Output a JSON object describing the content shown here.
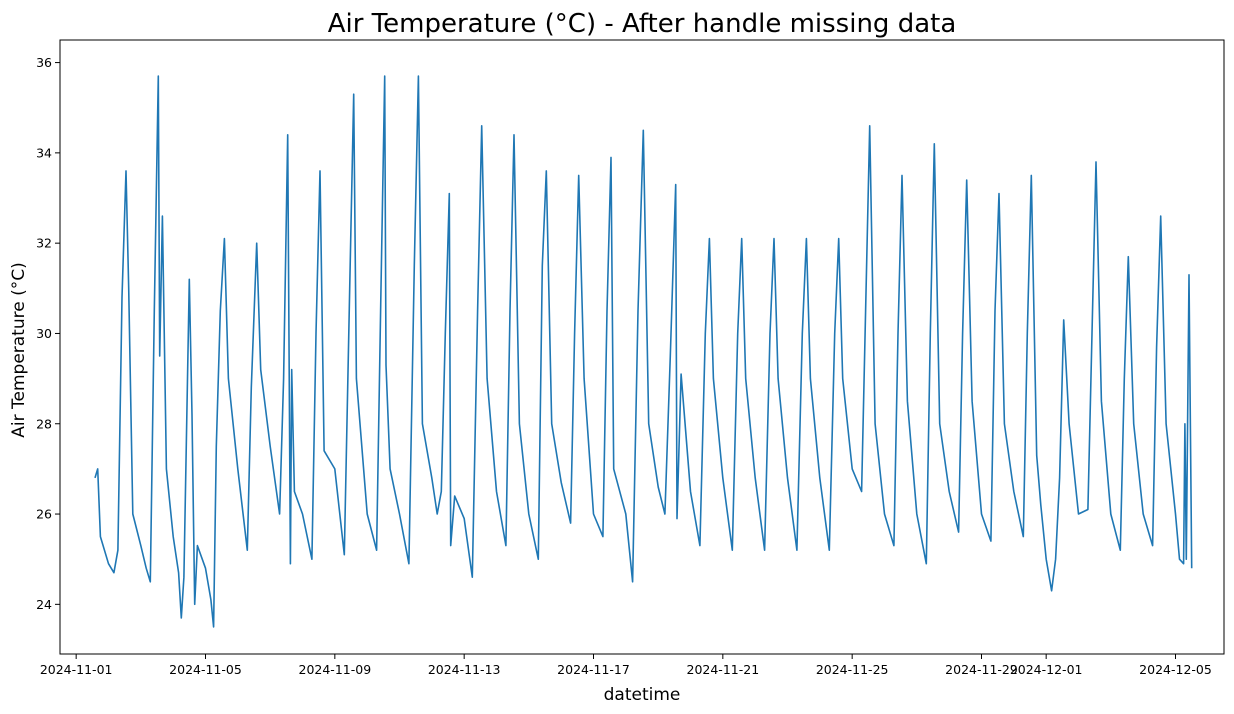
{
  "chart_data": {
    "type": "line",
    "title": "Air Temperature (°C) - After handle missing data",
    "xlabel": "datetime",
    "ylabel": "Air Temperature (°C)",
    "xlim": [
      "2024-10-31T12:00",
      "2024-12-06T12:00"
    ],
    "ylim": [
      22.9,
      36.5
    ],
    "grid": false,
    "colors": {
      "line": "#1f77b4",
      "axis": "#000000"
    },
    "x_ticks": [
      "2024-11-01",
      "2024-11-05",
      "2024-11-09",
      "2024-11-13",
      "2024-11-17",
      "2024-11-21",
      "2024-11-25",
      "2024-11-29",
      "2024-12-01",
      "2024-12-05"
    ],
    "y_ticks": [
      24,
      26,
      28,
      30,
      32,
      34,
      36
    ],
    "series": [
      {
        "points": [
          [
            "2024-11-01T14:00",
            26.8
          ],
          [
            "2024-11-01T16:00",
            27.0
          ],
          [
            "2024-11-01T18:00",
            25.5
          ],
          [
            "2024-11-02T00:00",
            24.9
          ],
          [
            "2024-11-02T04:00",
            24.7
          ],
          [
            "2024-11-02T07:00",
            25.2
          ],
          [
            "2024-11-02T10:00",
            30.8
          ],
          [
            "2024-11-02T13:00",
            33.6
          ],
          [
            "2024-11-02T15:00",
            31.0
          ],
          [
            "2024-11-02T18:00",
            26.0
          ],
          [
            "2024-11-03T00:00",
            25.3
          ],
          [
            "2024-11-03T04:00",
            24.8
          ],
          [
            "2024-11-03T07:00",
            24.5
          ],
          [
            "2024-11-03T10:00",
            30.5
          ],
          [
            "2024-11-03T13:00",
            35.7
          ],
          [
            "2024-11-03T14:00",
            29.5
          ],
          [
            "2024-11-03T16:00",
            32.6
          ],
          [
            "2024-11-03T19:00",
            27.0
          ],
          [
            "2024-11-04T00:00",
            25.5
          ],
          [
            "2024-11-04T04:00",
            24.7
          ],
          [
            "2024-11-04T06:00",
            23.7
          ],
          [
            "2024-11-04T08:00",
            24.6
          ],
          [
            "2024-11-04T12:00",
            31.2
          ],
          [
            "2024-11-04T14:00",
            28.2
          ],
          [
            "2024-11-04T16:00",
            24.0
          ],
          [
            "2024-11-04T18:00",
            25.3
          ],
          [
            "2024-11-05T00:00",
            24.8
          ],
          [
            "2024-11-05T04:00",
            24.1
          ],
          [
            "2024-11-05T06:00",
            23.5
          ],
          [
            "2024-11-05T08:00",
            27.5
          ],
          [
            "2024-11-05T11:00",
            30.5
          ],
          [
            "2024-11-05T14:00",
            32.1
          ],
          [
            "2024-11-05T17:00",
            29.0
          ],
          [
            "2024-11-06T00:00",
            27.0
          ],
          [
            "2024-11-06T07:00",
            25.2
          ],
          [
            "2024-11-06T10:00",
            28.8
          ],
          [
            "2024-11-06T14:00",
            32.0
          ],
          [
            "2024-11-06T17:00",
            29.2
          ],
          [
            "2024-11-07T00:00",
            27.5
          ],
          [
            "2024-11-07T07:00",
            26.0
          ],
          [
            "2024-11-07T10:00",
            29.0
          ],
          [
            "2024-11-07T13:00",
            34.4
          ],
          [
            "2024-11-07T15:00",
            24.9
          ],
          [
            "2024-11-07T16:00",
            29.2
          ],
          [
            "2024-11-07T18:00",
            26.5
          ],
          [
            "2024-11-08T00:00",
            26.0
          ],
          [
            "2024-11-08T07:00",
            25.0
          ],
          [
            "2024-11-08T10:00",
            30.0
          ],
          [
            "2024-11-08T13:00",
            33.6
          ],
          [
            "2024-11-08T16:00",
            27.4
          ],
          [
            "2024-11-09T00:00",
            27.0
          ],
          [
            "2024-11-09T07:00",
            25.1
          ],
          [
            "2024-11-09T11:00",
            31.0
          ],
          [
            "2024-11-09T14:00",
            35.3
          ],
          [
            "2024-11-09T16:00",
            29.0
          ],
          [
            "2024-11-10T00:00",
            26.0
          ],
          [
            "2024-11-10T07:00",
            25.2
          ],
          [
            "2024-11-10T10:00",
            30.5
          ],
          [
            "2024-11-10T13:00",
            35.7
          ],
          [
            "2024-11-10T14:00",
            29.3
          ],
          [
            "2024-11-10T17:00",
            27.0
          ],
          [
            "2024-11-11T00:00",
            26.0
          ],
          [
            "2024-11-11T07:00",
            24.9
          ],
          [
            "2024-11-11T11:00",
            31.5
          ],
          [
            "2024-11-11T14:00",
            35.7
          ],
          [
            "2024-11-11T17:00",
            28.0
          ],
          [
            "2024-11-12T00:00",
            26.8
          ],
          [
            "2024-11-12T04:00",
            26.0
          ],
          [
            "2024-11-12T07:00",
            26.5
          ],
          [
            "2024-11-12T10:00",
            30.0
          ],
          [
            "2024-11-12T13:00",
            33.1
          ],
          [
            "2024-11-12T14:00",
            25.3
          ],
          [
            "2024-11-12T17:00",
            26.4
          ],
          [
            "2024-11-13T00:00",
            25.9
          ],
          [
            "2024-11-13T06:00",
            24.6
          ],
          [
            "2024-11-13T10:00",
            30.5
          ],
          [
            "2024-11-13T13:00",
            34.6
          ],
          [
            "2024-11-13T17:00",
            29.0
          ],
          [
            "2024-11-14T00:00",
            26.5
          ],
          [
            "2024-11-14T07:00",
            25.3
          ],
          [
            "2024-11-14T10:00",
            30.5
          ],
          [
            "2024-11-14T13:00",
            34.4
          ],
          [
            "2024-11-14T17:00",
            28.0
          ],
          [
            "2024-11-15T00:00",
            26.0
          ],
          [
            "2024-11-15T07:00",
            25.0
          ],
          [
            "2024-11-15T10:00",
            31.5
          ],
          [
            "2024-11-15T13:00",
            33.6
          ],
          [
            "2024-11-15T17:00",
            28.0
          ],
          [
            "2024-11-16T00:00",
            26.7
          ],
          [
            "2024-11-16T07:00",
            25.8
          ],
          [
            "2024-11-16T10:00",
            30.0
          ],
          [
            "2024-11-16T13:00",
            33.5
          ],
          [
            "2024-11-16T17:00",
            29.0
          ],
          [
            "2024-11-17T00:00",
            26.0
          ],
          [
            "2024-11-17T07:00",
            25.5
          ],
          [
            "2024-11-17T10:00",
            30.5
          ],
          [
            "2024-11-17T13:00",
            33.9
          ],
          [
            "2024-11-17T15:00",
            27.0
          ],
          [
            "2024-11-18T00:00",
            26.0
          ],
          [
            "2024-11-18T05:00",
            24.5
          ],
          [
            "2024-11-18T09:00",
            30.5
          ],
          [
            "2024-11-18T13:00",
            34.5
          ],
          [
            "2024-11-18T17:00",
            28.0
          ],
          [
            "2024-11-19T00:00",
            26.6
          ],
          [
            "2024-11-19T05:00",
            26.0
          ],
          [
            "2024-11-19T09:00",
            29.5
          ],
          [
            "2024-11-19T13:00",
            33.3
          ],
          [
            "2024-11-19T14:00",
            25.9
          ],
          [
            "2024-11-19T17:00",
            29.1
          ],
          [
            "2024-11-20T00:00",
            26.5
          ],
          [
            "2024-11-20T07:00",
            25.3
          ],
          [
            "2024-11-20T11:00",
            30.0
          ],
          [
            "2024-11-20T14:00",
            32.1
          ],
          [
            "2024-11-20T17:00",
            29.0
          ],
          [
            "2024-11-21T00:00",
            26.8
          ],
          [
            "2024-11-21T07:00",
            25.2
          ],
          [
            "2024-11-21T11:00",
            30.0
          ],
          [
            "2024-11-21T14:00",
            32.1
          ],
          [
            "2024-11-21T17:00",
            29.0
          ],
          [
            "2024-11-22T00:00",
            26.8
          ],
          [
            "2024-11-22T07:00",
            25.2
          ],
          [
            "2024-11-22T11:00",
            30.0
          ],
          [
            "2024-11-22T14:00",
            32.1
          ],
          [
            "2024-11-22T17:00",
            29.0
          ],
          [
            "2024-11-23T00:00",
            26.8
          ],
          [
            "2024-11-23T07:00",
            25.2
          ],
          [
            "2024-11-23T11:00",
            30.0
          ],
          [
            "2024-11-23T14:00",
            32.1
          ],
          [
            "2024-11-23T17:00",
            29.0
          ],
          [
            "2024-11-24T00:00",
            26.8
          ],
          [
            "2024-11-24T07:00",
            25.2
          ],
          [
            "2024-11-24T11:00",
            30.0
          ],
          [
            "2024-11-24T14:00",
            32.1
          ],
          [
            "2024-11-24T17:00",
            29.0
          ],
          [
            "2024-11-25T00:00",
            27.0
          ],
          [
            "2024-11-25T07:00",
            26.5
          ],
          [
            "2024-11-25T10:00",
            30.5
          ],
          [
            "2024-11-25T13:00",
            34.6
          ],
          [
            "2024-11-25T17:00",
            28.0
          ],
          [
            "2024-11-26T00:00",
            26.0
          ],
          [
            "2024-11-26T07:00",
            25.3
          ],
          [
            "2024-11-26T10:00",
            30.0
          ],
          [
            "2024-11-26T13:00",
            33.5
          ],
          [
            "2024-11-26T17:00",
            28.5
          ],
          [
            "2024-11-27T00:00",
            26.0
          ],
          [
            "2024-11-27T07:00",
            24.9
          ],
          [
            "2024-11-27T10:00",
            30.0
          ],
          [
            "2024-11-27T13:00",
            34.2
          ],
          [
            "2024-11-27T17:00",
            28.0
          ],
          [
            "2024-11-28T00:00",
            26.5
          ],
          [
            "2024-11-28T07:00",
            25.6
          ],
          [
            "2024-11-28T10:00",
            30.0
          ],
          [
            "2024-11-28T13:00",
            33.4
          ],
          [
            "2024-11-28T17:00",
            28.5
          ],
          [
            "2024-11-29T00:00",
            26.0
          ],
          [
            "2024-11-29T07:00",
            25.4
          ],
          [
            "2024-11-29T10:00",
            30.5
          ],
          [
            "2024-11-29T13:00",
            33.1
          ],
          [
            "2024-11-29T17:00",
            28.0
          ],
          [
            "2024-11-30T00:00",
            26.5
          ],
          [
            "2024-11-30T07:00",
            25.5
          ],
          [
            "2024-11-30T10:00",
            30.0
          ],
          [
            "2024-11-30T13:00",
            33.5
          ],
          [
            "2024-11-30T17:00",
            27.3
          ],
          [
            "2024-11-30T20:00",
            26.2
          ],
          [
            "2024-12-01T00:00",
            25.0
          ],
          [
            "2024-12-01T04:00",
            24.3
          ],
          [
            "2024-12-01T07:00",
            25.0
          ],
          [
            "2024-12-01T10:00",
            26.8
          ],
          [
            "2024-12-01T13:00",
            30.3
          ],
          [
            "2024-12-01T17:00",
            28.0
          ],
          [
            "2024-12-02T00:00",
            26.0
          ],
          [
            "2024-12-02T07:00",
            26.1
          ],
          [
            "2024-12-02T10:00",
            30.0
          ],
          [
            "2024-12-02T13:00",
            33.8
          ],
          [
            "2024-12-02T17:00",
            28.5
          ],
          [
            "2024-12-03T00:00",
            26.0
          ],
          [
            "2024-12-03T07:00",
            25.2
          ],
          [
            "2024-12-03T10:00",
            29.0
          ],
          [
            "2024-12-03T13:00",
            31.7
          ],
          [
            "2024-12-03T17:00",
            28.0
          ],
          [
            "2024-12-04T00:00",
            26.0
          ],
          [
            "2024-12-04T07:00",
            25.3
          ],
          [
            "2024-12-04T10:00",
            29.7
          ],
          [
            "2024-12-04T13:00",
            32.6
          ],
          [
            "2024-12-04T17:00",
            28.0
          ],
          [
            "2024-12-05T00:00",
            26.0
          ],
          [
            "2024-12-05T03:00",
            25.0
          ],
          [
            "2024-12-05T06:00",
            24.9
          ],
          [
            "2024-12-05T07:00",
            28.0
          ],
          [
            "2024-12-05T08:00",
            25.0
          ],
          [
            "2024-12-05T10:00",
            31.3
          ],
          [
            "2024-12-05T12:00",
            24.8
          ]
        ]
      }
    ]
  }
}
